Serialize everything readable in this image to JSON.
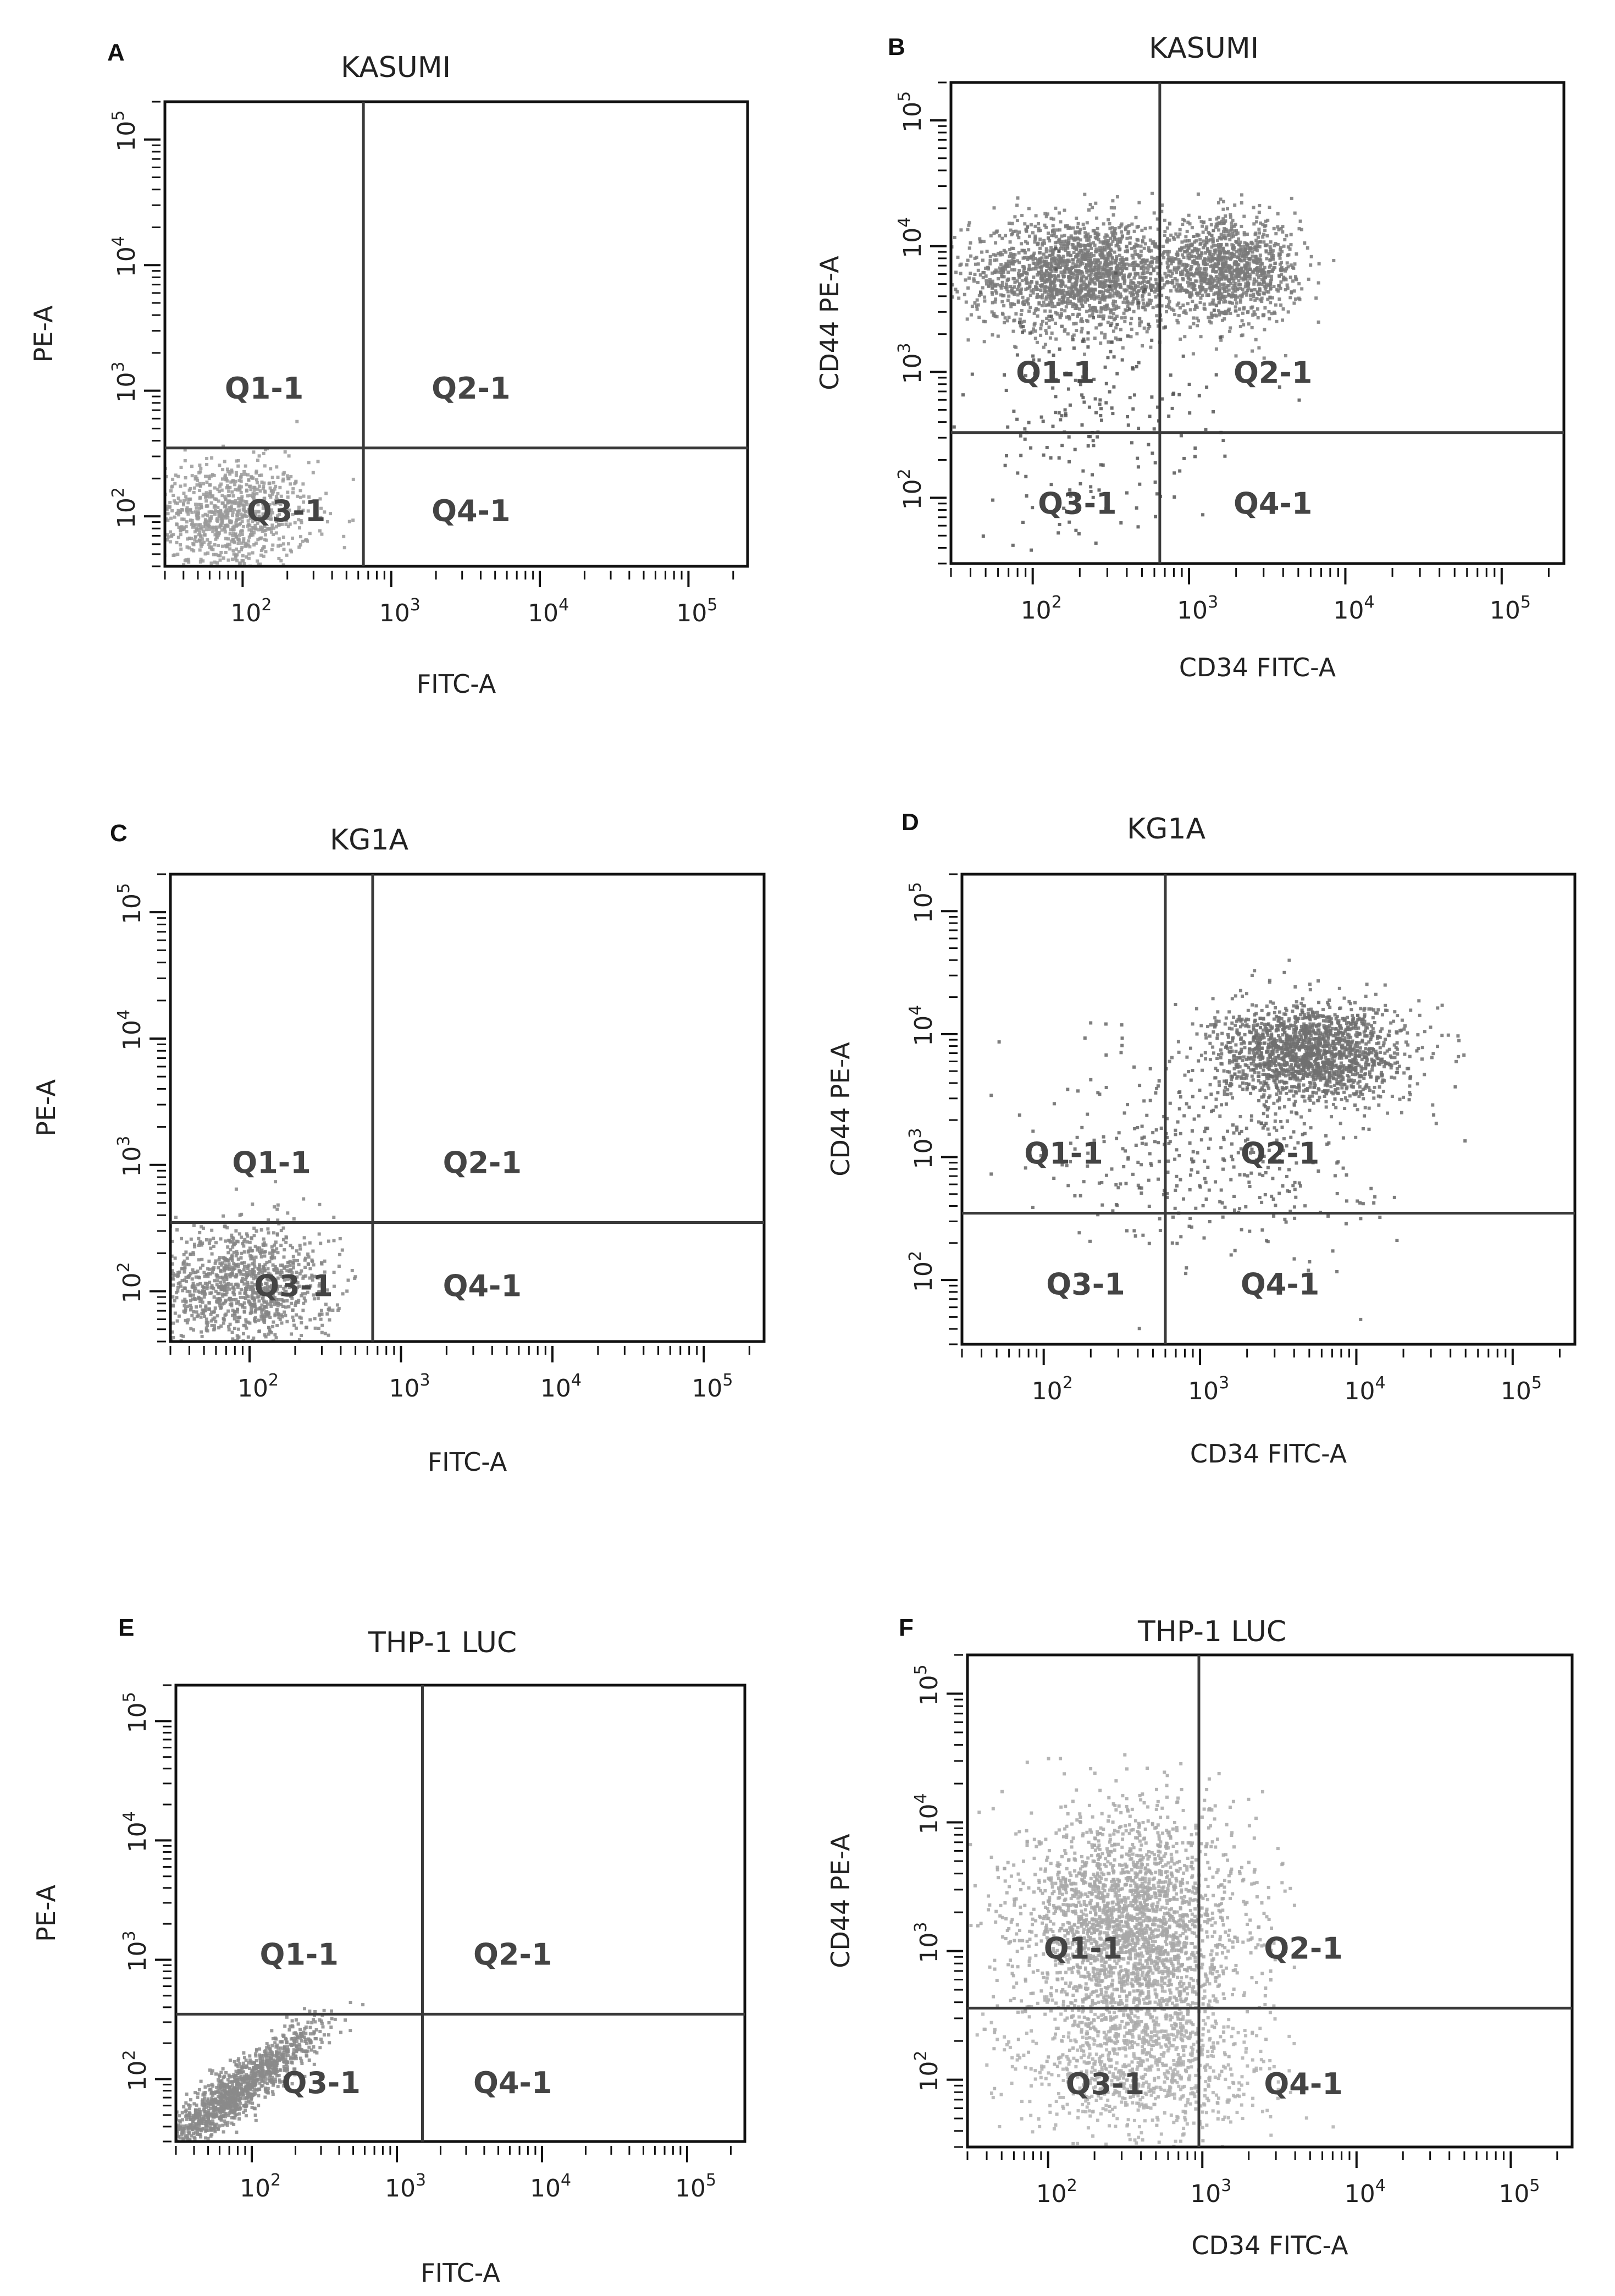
{
  "chart_data": [
    {
      "type": "scatter",
      "panel": "A",
      "title": "KASUMI",
      "xlabel": "FITC-A",
      "ylabel": "PE-A",
      "x_scale": "log",
      "y_scale": "log",
      "xlim": [
        30,
        250000
      ],
      "ylim": [
        40,
        200000
      ],
      "x_ticks": [
        {
          "base": "10",
          "exp": "2"
        },
        {
          "base": "10",
          "exp": "3"
        },
        {
          "base": "10",
          "exp": "4"
        },
        {
          "base": "10",
          "exp": "5"
        }
      ],
      "y_ticks": [
        {
          "base": "10",
          "exp": "2"
        },
        {
          "base": "10",
          "exp": "3"
        },
        {
          "base": "10",
          "exp": "4"
        },
        {
          "base": "10",
          "exp": "5"
        }
      ],
      "gate": {
        "x": 650,
        "y": 350
      },
      "quadrants": [
        "Q1-1",
        "Q2-1",
        "Q3-1",
        "Q4-1"
      ],
      "populations": [
        {
          "center_x": 80,
          "center_y": 100,
          "spread_x": 0.28,
          "spread_y": 0.22,
          "n": 900,
          "color": "#9a9a9a"
        }
      ],
      "point_color": "#9a9a9a"
    },
    {
      "type": "scatter",
      "panel": "B",
      "title": "KASUMI",
      "xlabel": "CD34 FITC-A",
      "ylabel": "CD44 PE-A",
      "x_scale": "log",
      "y_scale": "log",
      "xlim": [
        30,
        250000
      ],
      "ylim": [
        30,
        200000
      ],
      "x_ticks": [
        {
          "base": "10",
          "exp": "2"
        },
        {
          "base": "10",
          "exp": "3"
        },
        {
          "base": "10",
          "exp": "4"
        },
        {
          "base": "10",
          "exp": "5"
        }
      ],
      "y_ticks": [
        {
          "base": "10",
          "exp": "2"
        },
        {
          "base": "10",
          "exp": "3"
        },
        {
          "base": "10",
          "exp": "4"
        },
        {
          "base": "10",
          "exp": "5"
        }
      ],
      "gate": {
        "x": 650,
        "y": 330
      },
      "quadrants": [
        "Q1-1",
        "Q2-1",
        "Q3-1",
        "Q4-1"
      ],
      "populations": [
        {
          "center_x": 200,
          "center_y": 6000,
          "spread_x": 0.35,
          "spread_y": 0.22,
          "n": 1800,
          "color": "#7a7a7a"
        },
        {
          "center_x": 1800,
          "center_y": 6500,
          "spread_x": 0.22,
          "spread_y": 0.2,
          "n": 1100,
          "color": "#7a7a7a"
        },
        {
          "center_x": 250,
          "center_y": 400,
          "spread_x": 0.4,
          "spread_y": 0.5,
          "n": 220,
          "color": "#555555"
        }
      ],
      "point_color": "#7a7a7a"
    },
    {
      "type": "scatter",
      "panel": "C",
      "title": "KG1A",
      "xlabel": "FITC-A",
      "ylabel": "PE-A",
      "x_scale": "log",
      "y_scale": "log",
      "xlim": [
        30,
        250000
      ],
      "ylim": [
        40,
        200000
      ],
      "x_ticks": [
        {
          "base": "10",
          "exp": "2"
        },
        {
          "base": "10",
          "exp": "3"
        },
        {
          "base": "10",
          "exp": "4"
        },
        {
          "base": "10",
          "exp": "5"
        }
      ],
      "y_ticks": [
        {
          "base": "10",
          "exp": "2"
        },
        {
          "base": "10",
          "exp": "3"
        },
        {
          "base": "10",
          "exp": "4"
        },
        {
          "base": "10",
          "exp": "5"
        }
      ],
      "gate": {
        "x": 650,
        "y": 350
      },
      "quadrants": [
        "Q1-1",
        "Q2-1",
        "Q3-1",
        "Q4-1"
      ],
      "populations": [
        {
          "center_x": 90,
          "center_y": 110,
          "spread_x": 0.3,
          "spread_y": 0.25,
          "n": 1100,
          "color": "#858585"
        }
      ],
      "point_color": "#858585"
    },
    {
      "type": "scatter",
      "panel": "D",
      "title": "KG1A",
      "xlabel": "CD34 FITC-A",
      "ylabel": "CD44 PE-A",
      "x_scale": "log",
      "y_scale": "log",
      "xlim": [
        30,
        250000
      ],
      "ylim": [
        30,
        200000
      ],
      "x_ticks": [
        {
          "base": "10",
          "exp": "2"
        },
        {
          "base": "10",
          "exp": "3"
        },
        {
          "base": "10",
          "exp": "4"
        },
        {
          "base": "10",
          "exp": "5"
        }
      ],
      "y_ticks": [
        {
          "base": "10",
          "exp": "2"
        },
        {
          "base": "10",
          "exp": "3"
        },
        {
          "base": "10",
          "exp": "4"
        },
        {
          "base": "10",
          "exp": "5"
        }
      ],
      "gate": {
        "x": 600,
        "y": 350
      },
      "quadrants": [
        "Q1-1",
        "Q2-1",
        "Q3-1",
        "Q4-1"
      ],
      "populations": [
        {
          "center_x": 5000,
          "center_y": 7000,
          "spread_x": 0.3,
          "spread_y": 0.2,
          "n": 1700,
          "color": "#707070"
        },
        {
          "center_x": 1200,
          "center_y": 1200,
          "spread_x": 0.5,
          "spread_y": 0.45,
          "n": 400,
          "color": "#666666"
        }
      ],
      "point_color": "#707070"
    },
    {
      "type": "scatter",
      "panel": "E",
      "title": "THP-1 LUC",
      "xlabel": "FITC-A",
      "ylabel": "PE-A",
      "x_scale": "log",
      "y_scale": "log",
      "xlim": [
        30,
        250000
      ],
      "ylim": [
        30,
        200000
      ],
      "x_ticks": [
        {
          "base": "10",
          "exp": "2"
        },
        {
          "base": "10",
          "exp": "3"
        },
        {
          "base": "10",
          "exp": "4"
        },
        {
          "base": "10",
          "exp": "5"
        }
      ],
      "y_ticks": [
        {
          "base": "10",
          "exp": "2"
        },
        {
          "base": "10",
          "exp": "3"
        },
        {
          "base": "10",
          "exp": "4"
        },
        {
          "base": "10",
          "exp": "5"
        }
      ],
      "gate": {
        "x": 1500,
        "y": 350
      },
      "quadrants": [
        "Q1-1",
        "Q2-1",
        "Q3-1",
        "Q4-1"
      ],
      "populations": [
        {
          "center_x": 80,
          "center_y": 80,
          "spread_x": 0.28,
          "spread_y": 0.25,
          "n": 1300,
          "color": "#8a8a8a",
          "diagonal": true
        }
      ],
      "point_color": "#8a8a8a"
    },
    {
      "type": "scatter",
      "panel": "F",
      "title": "THP-1 LUC",
      "xlabel": "CD34 FITC-A",
      "ylabel": "CD44 PE-A",
      "x_scale": "log",
      "y_scale": "log",
      "xlim": [
        30,
        250000
      ],
      "ylim": [
        30,
        200000
      ],
      "x_ticks": [
        {
          "base": "10",
          "exp": "2"
        },
        {
          "base": "10",
          "exp": "3"
        },
        {
          "base": "10",
          "exp": "4"
        },
        {
          "base": "10",
          "exp": "5"
        }
      ],
      "y_ticks": [
        {
          "base": "10",
          "exp": "2"
        },
        {
          "base": "10",
          "exp": "3"
        },
        {
          "base": "10",
          "exp": "4"
        },
        {
          "base": "10",
          "exp": "5"
        }
      ],
      "gate": {
        "x": 950,
        "y": 360
      },
      "quadrants": [
        "Q1-1",
        "Q2-1",
        "Q3-1",
        "Q4-1"
      ],
      "populations": [
        {
          "center_x": 350,
          "center_y": 1500,
          "spread_x": 0.35,
          "spread_y": 0.45,
          "n": 2600,
          "color": "#a8a8a8"
        },
        {
          "center_x": 400,
          "center_y": 120,
          "spread_x": 0.4,
          "spread_y": 0.3,
          "n": 900,
          "color": "#b0b0b0"
        }
      ],
      "point_color": "#a8a8a8"
    }
  ]
}
